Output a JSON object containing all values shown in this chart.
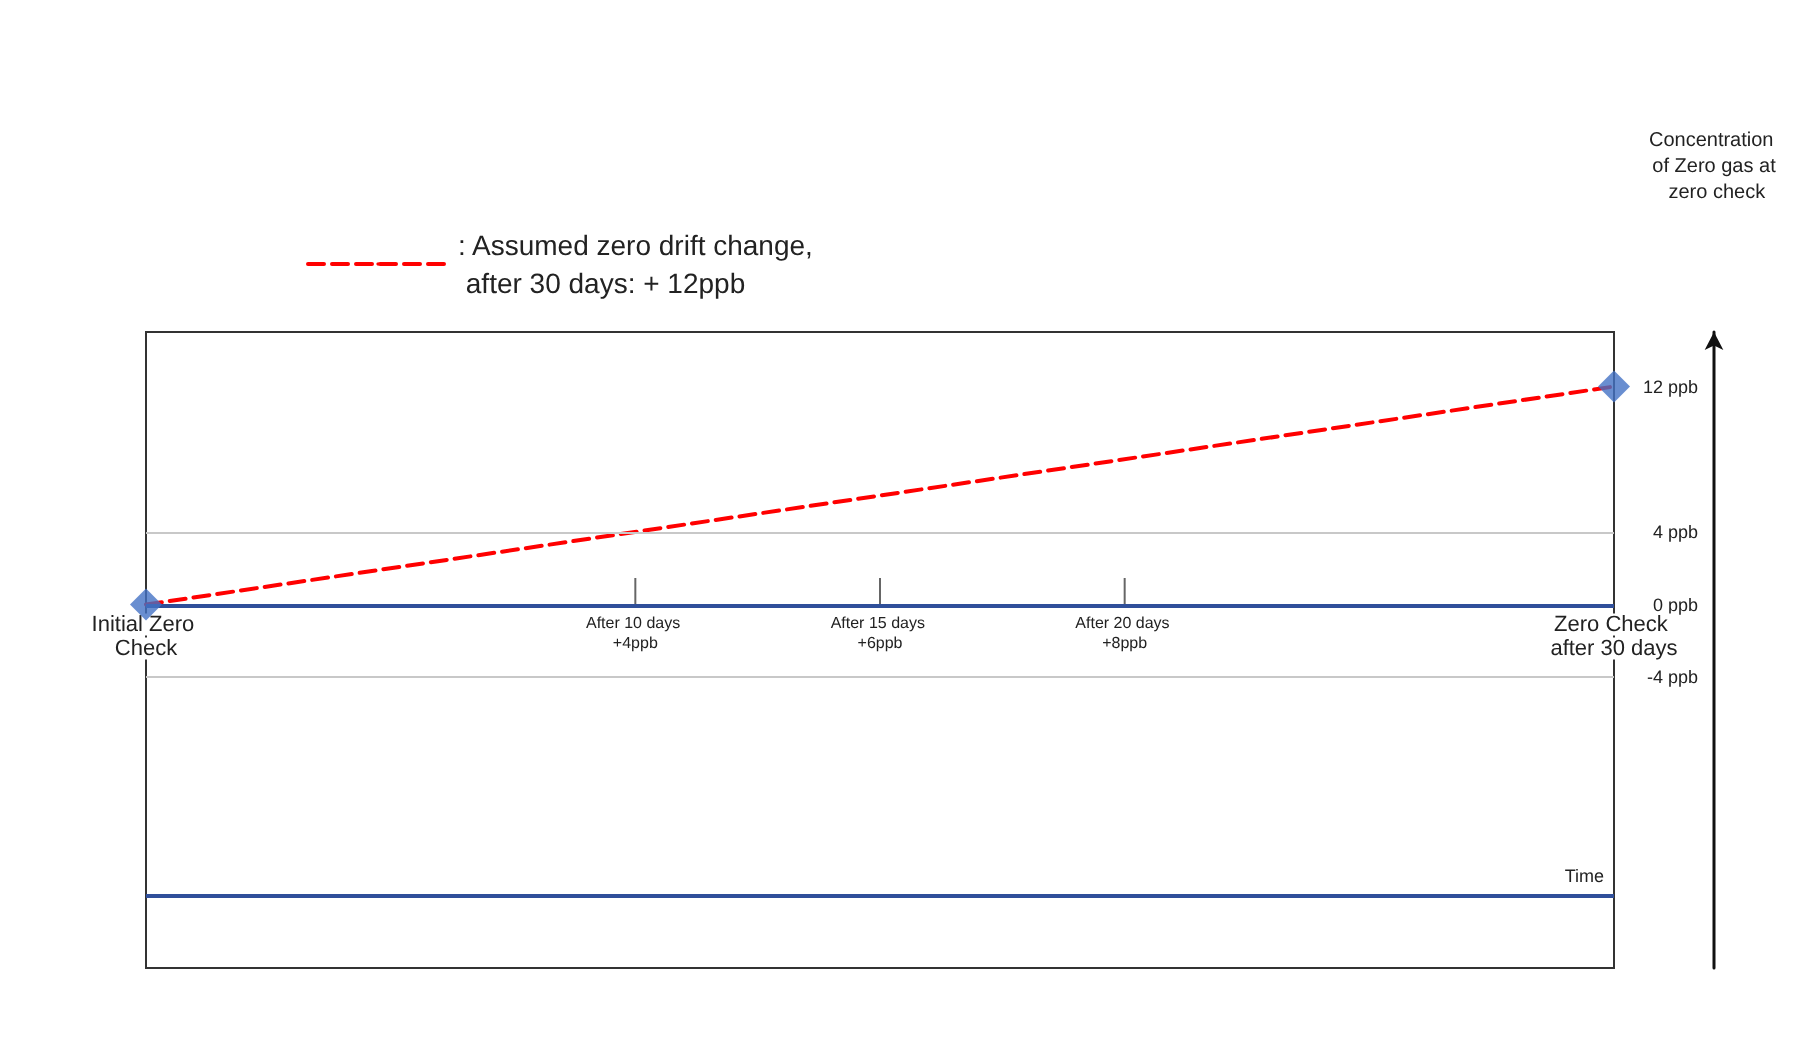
{
  "chart_data": {
    "type": "line",
    "annotations": [
      "Concentration of Zero gas at zero check"
    ],
    "categories": [
      "Initial Zero Check",
      null,
      null,
      null,
      null,
      null,
      null,
      null,
      null,
      null,
      "After 10 days +4ppb",
      null,
      null,
      null,
      null,
      "After 15 days +6ppb",
      null,
      null,
      null,
      null,
      "After 20 days +8ppb",
      null,
      null,
      null,
      null,
      null,
      null,
      null,
      null,
      null,
      "Zero Check after 30 days"
    ],
    "ylim": [
      -20,
      15
    ],
    "yticks": [
      {
        "value": 12,
        "label": "12 ppb"
      },
      {
        "value": 4,
        "label": "4 ppb"
      },
      {
        "value": 0,
        "label": "0 ppb"
      },
      {
        "value": -4,
        "label": "-4 ppb"
      }
    ],
    "series": [
      {
        "name": ": Assumed zero drift change, after 30 days: + 12ppb",
        "color": "#ff0000",
        "values": [
          0,
          null,
          null,
          null,
          null,
          null,
          null,
          null,
          null,
          null,
          null,
          null,
          null,
          null,
          null,
          null,
          null,
          null,
          null,
          null,
          null,
          null,
          null,
          null,
          null,
          null,
          null,
          null,
          null,
          null,
          12
        ],
        "line_style": "dashed",
        "marker": "none"
      },
      {
        "type": "scatter",
        "color": "#4472c4",
        "values": [
          0,
          null,
          null,
          null,
          null,
          null,
          null,
          null,
          null,
          null,
          null,
          null,
          null,
          null,
          null,
          null,
          null,
          null,
          null,
          null,
          null,
          null,
          null,
          null,
          null,
          null,
          null,
          null,
          null,
          null,
          12
        ],
        "marker": "diamond"
      }
    ],
    "ref_lines": [
      {
        "axis": "y",
        "value": 4,
        "color": "#c8c8c8"
      },
      {
        "axis": "y",
        "value": -4,
        "color": "#c8c8c8"
      },
      {
        "axis": "y",
        "value": 0,
        "color": "#2f4f9a"
      },
      {
        "axis": "y",
        "value": -16,
        "color": "#2f4f9a",
        "label": "Time"
      }
    ],
    "grid": false,
    "legend": "top left"
  }
}
